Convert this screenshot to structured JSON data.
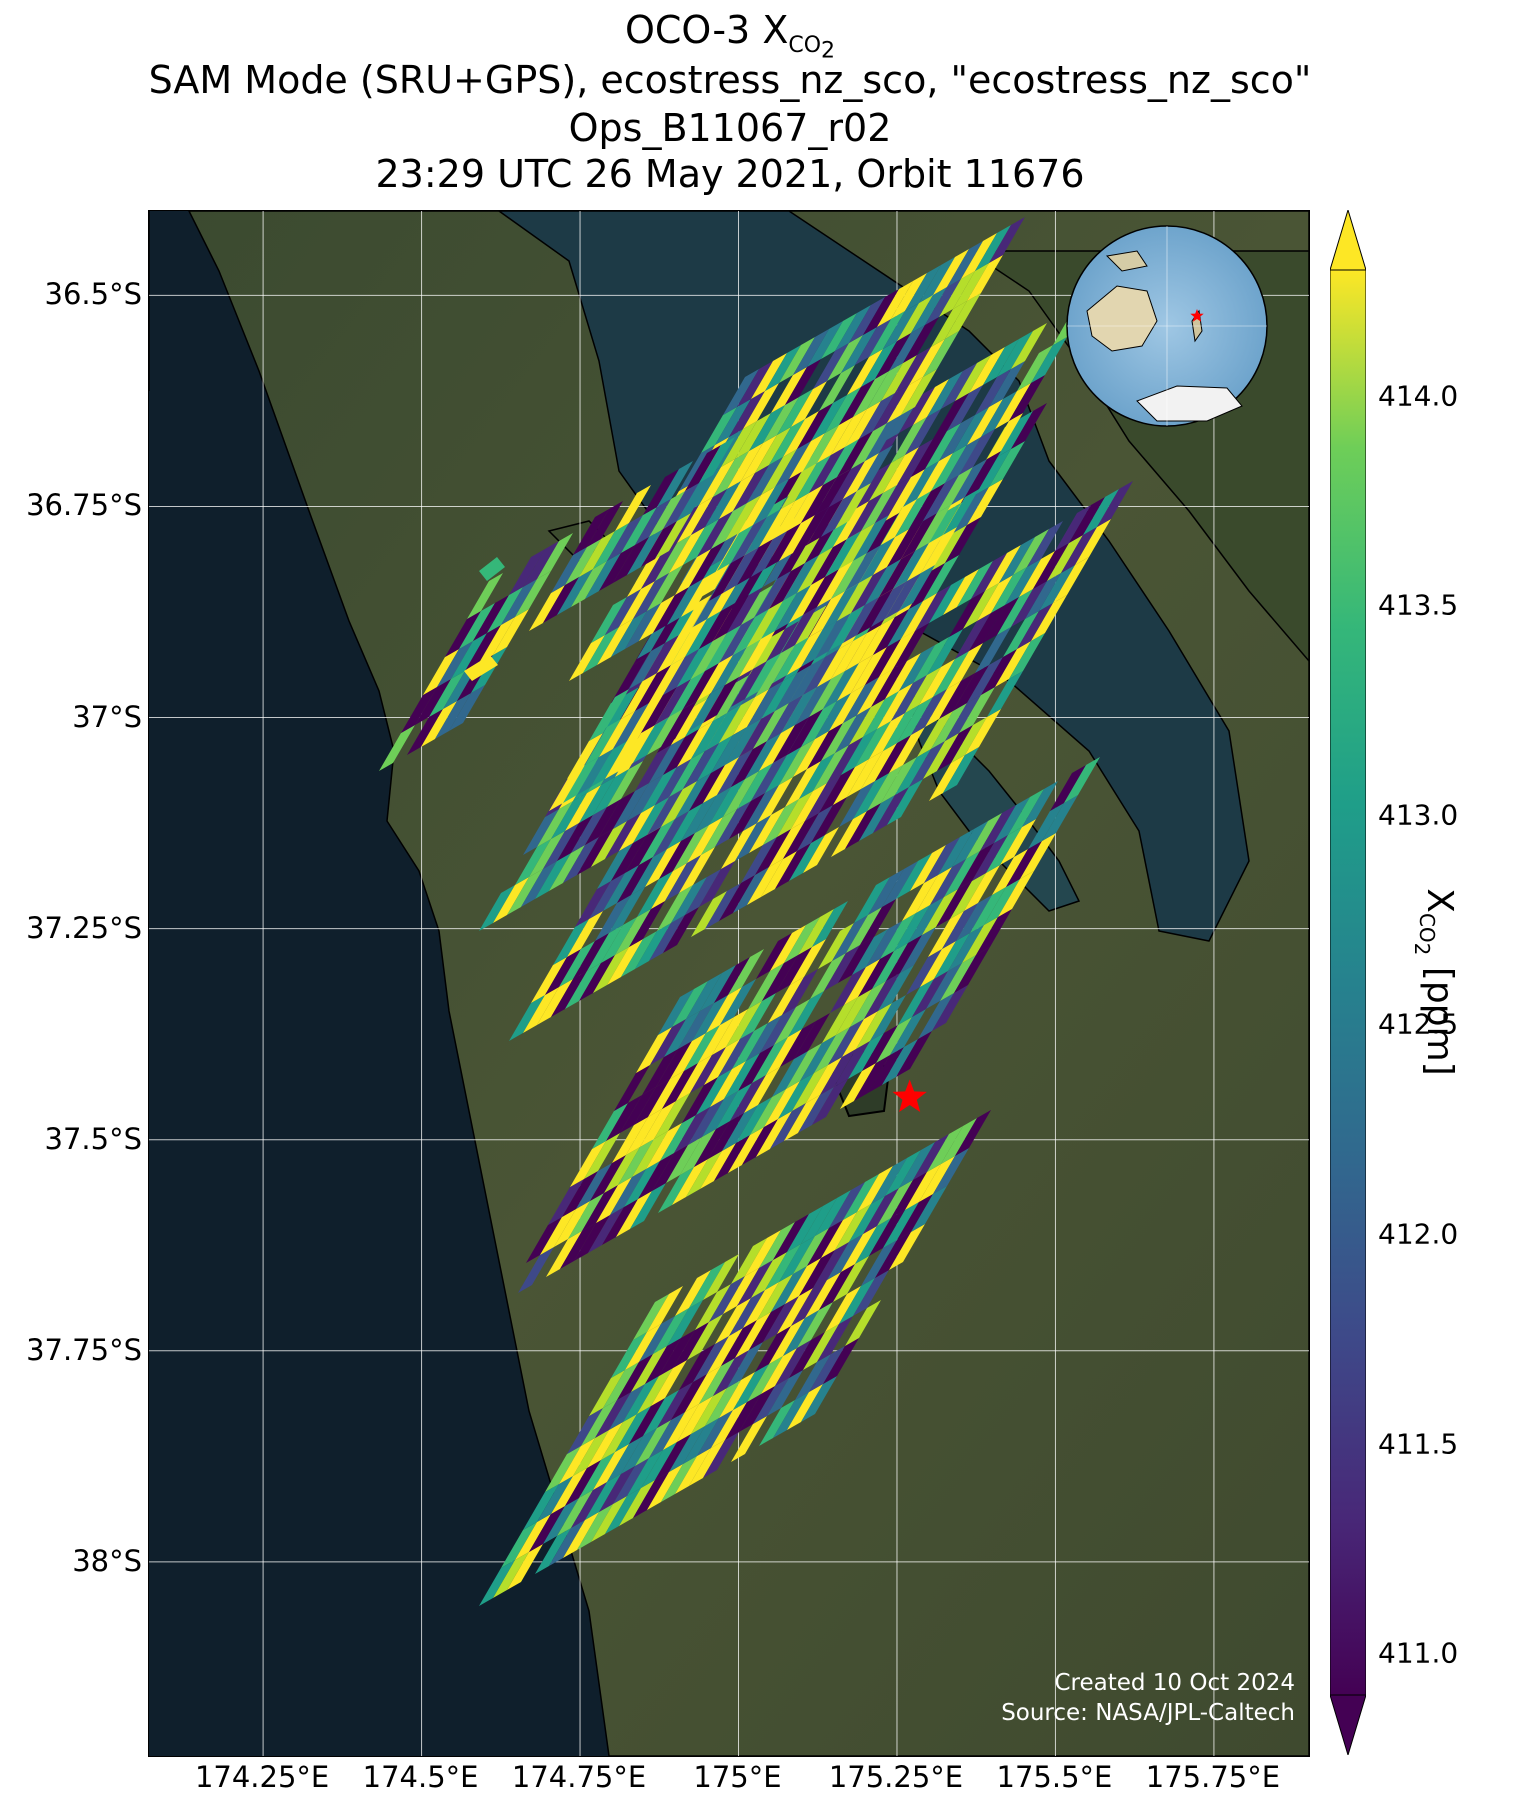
{
  "title": {
    "line1_main": "OCO-3 X",
    "line1_sub": "CO",
    "line1_subsub": "2",
    "line2": "SAM Mode (SRU+GPS), ecostress_nz_sco, \"ecostress_nz_sco\"",
    "line3": "Ops_B11067_r02",
    "line4": "23:29 UTC 26 May 2021, Orbit 11676"
  },
  "map": {
    "lat_ticks": [
      {
        "value": -36.5,
        "label": "36.5°S"
      },
      {
        "value": -36.75,
        "label": "36.75°S"
      },
      {
        "value": -37.0,
        "label": "37°S"
      },
      {
        "value": -37.25,
        "label": "37.25°S"
      },
      {
        "value": -37.5,
        "label": "37.5°S"
      },
      {
        "value": -37.75,
        "label": "37.75°S"
      },
      {
        "value": -38.0,
        "label": "38°S"
      }
    ],
    "lon_ticks": [
      {
        "value": 174.25,
        "label": "174.25°E"
      },
      {
        "value": 174.5,
        "label": "174.5°E"
      },
      {
        "value": 174.75,
        "label": "174.75°E"
      },
      {
        "value": 175.0,
        "label": "175°E"
      },
      {
        "value": 175.25,
        "label": "175.25°E"
      },
      {
        "value": 175.5,
        "label": "175.5°E"
      },
      {
        "value": 175.75,
        "label": "175.75°E"
      }
    ],
    "lat_range": [
      -38.23,
      -36.4
    ],
    "lon_range": [
      174.07,
      175.9
    ],
    "target_marker": {
      "lon": 175.27,
      "lat": -37.45,
      "color": "#ff0000"
    },
    "credit_line1": "Created 10 Oct 2024",
    "credit_line2": "Source: NASA/JPL-Caltech"
  },
  "colorbar": {
    "colormap": "viridis",
    "min": 410.9,
    "max": 414.3,
    "ticks": [
      {
        "value": 414.0,
        "label": "414.0"
      },
      {
        "value": 413.5,
        "label": "413.5"
      },
      {
        "value": 413.0,
        "label": "413.0"
      },
      {
        "value": 412.5,
        "label": "412.5"
      },
      {
        "value": 412.0,
        "label": "412.0"
      },
      {
        "value": 411.5,
        "label": "411.5"
      },
      {
        "value": 411.0,
        "label": "411.0"
      }
    ],
    "label_main": "X",
    "label_sub": "CO",
    "label_subsub": "2",
    "label_unit": " [ppm]"
  }
}
